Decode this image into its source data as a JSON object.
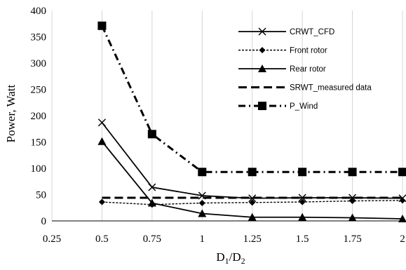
{
  "chart_data": {
    "type": "line",
    "xlabel": "D1/D2",
    "ylabel": "Power, Watt",
    "xlim": [
      0.25,
      2
    ],
    "ylim": [
      0,
      400
    ],
    "x_ticks": [
      "0.25",
      "0.5",
      "0.75",
      "1",
      "1.25",
      "1.5",
      "1.75",
      "2"
    ],
    "y_ticks": [
      "0",
      "50",
      "100",
      "150",
      "200",
      "250",
      "300",
      "350",
      "400"
    ],
    "grid": "vertical",
    "legend_position": "top-right",
    "x": [
      0.5,
      0.75,
      1,
      1.25,
      1.5,
      1.75,
      2
    ],
    "series": [
      {
        "name": "CRWT_CFD",
        "values": [
          187,
          64,
          48,
          43,
          44,
          44,
          43
        ],
        "line": "solid",
        "marker": "x",
        "color": "#000000"
      },
      {
        "name": "Front rotor",
        "values": [
          36,
          31,
          34,
          35,
          36,
          38,
          39
        ],
        "line": "dotted",
        "marker": "diamond",
        "color": "#000000"
      },
      {
        "name": "Rear rotor",
        "values": [
          151,
          34,
          14,
          7,
          7,
          6,
          4
        ],
        "line": "solid",
        "marker": "triangle",
        "color": "#000000"
      },
      {
        "name": "SRWT_measured data",
        "values": [
          44,
          44,
          44,
          44,
          44,
          44,
          44
        ],
        "line": "dashed",
        "marker": "none",
        "color": "#000000"
      },
      {
        "name": "P_Wind",
        "values": [
          371,
          165,
          93,
          93,
          93,
          93,
          93
        ],
        "line": "dash-dot",
        "marker": "square",
        "color": "#000000"
      }
    ]
  }
}
